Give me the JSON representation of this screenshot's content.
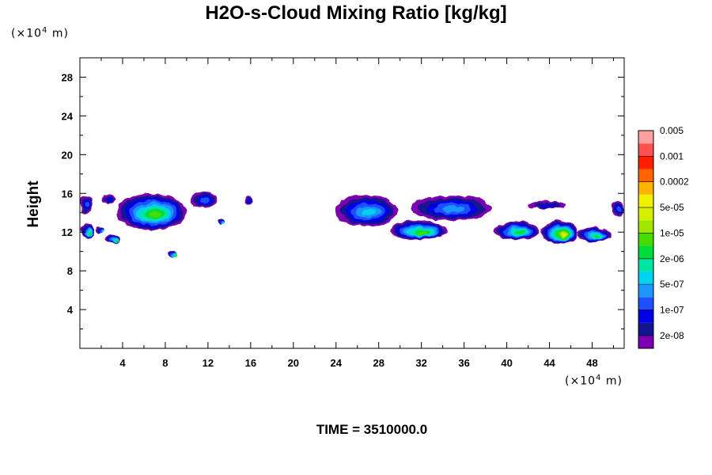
{
  "title": "H2O-s-Cloud Mixing Ratio [kg/kg]",
  "y_unit": {
    "prefix": "(×10",
    "exp": "4",
    "suffix": " m)"
  },
  "x_unit": {
    "prefix": "(×10",
    "exp": "4",
    "suffix": " m)"
  },
  "time_label": "TIME = 3510000.0",
  "chart_data": {
    "type": "heatmap",
    "title": "H2O-s-Cloud Mixing Ratio [kg/kg]",
    "xlabel": "",
    "ylabel": "Height",
    "x_unit": "(×10^4 m)",
    "y_unit": "(×10^4 m)",
    "xlim": [
      0,
      51
    ],
    "ylim": [
      0,
      30
    ],
    "xticks": [
      4,
      8,
      12,
      16,
      20,
      24,
      28,
      32,
      36,
      40,
      44,
      48
    ],
    "yticks": [
      4,
      8,
      12,
      16,
      20,
      24,
      28
    ],
    "colorbar": {
      "levels": [
        "2e-08",
        "1e-07",
        "5e-07",
        "2e-06",
        "1e-05",
        "5e-05",
        "0.0002",
        "0.001",
        "0.005"
      ],
      "colors": [
        "#7a00b0",
        "#12138f",
        "#0000e6",
        "#1e50ff",
        "#1e96ff",
        "#00d2f0",
        "#00e6a0",
        "#00dc3c",
        "#46dc00",
        "#a0e600",
        "#d2f000",
        "#f0f000",
        "#ffb400",
        "#ff6400",
        "#ff1e00",
        "#ff5050",
        "#ffa0a0"
      ]
    },
    "regions": [
      {
        "x": [
          0.0,
          1.2
        ],
        "y": [
          14.0,
          15.8
        ],
        "peak": 4
      },
      {
        "x": [
          2.0,
          3.4
        ],
        "y": [
          15.0,
          15.9
        ],
        "peak": 3
      },
      {
        "x": [
          3.4,
          10.0
        ],
        "y": [
          12.2,
          16.0
        ],
        "peak": 9
      },
      {
        "x": [
          10.3,
          12.9
        ],
        "y": [
          14.5,
          16.2
        ],
        "peak": 4
      },
      {
        "x": [
          15.4,
          16.2
        ],
        "y": [
          14.8,
          15.8
        ],
        "peak": 3
      },
      {
        "x": [
          23.9,
          29.8
        ],
        "y": [
          12.6,
          15.8
        ],
        "peak": 6
      },
      {
        "x": [
          31.0,
          38.6
        ],
        "y": [
          13.2,
          15.8
        ],
        "peak": 5
      },
      {
        "x": [
          42.0,
          45.6
        ],
        "y": [
          14.4,
          15.2
        ],
        "peak": 3
      },
      {
        "x": [
          49.8,
          51.0
        ],
        "y": [
          13.6,
          15.2
        ],
        "peak": 4
      },
      {
        "x": [
          29.0,
          34.4
        ],
        "y": [
          11.2,
          13.2
        ],
        "peak": 9
      },
      {
        "x": [
          38.8,
          43.0
        ],
        "y": [
          11.2,
          13.1
        ],
        "peak": 8
      },
      {
        "x": [
          43.2,
          46.6
        ],
        "y": [
          10.8,
          13.2
        ],
        "peak": 11
      },
      {
        "x": [
          46.6,
          49.8
        ],
        "y": [
          11.0,
          12.5
        ],
        "peak": 8
      },
      {
        "x": [
          0.0,
          1.4
        ],
        "y": [
          11.3,
          12.8
        ],
        "peak": 8
      },
      {
        "x": [
          2.4,
          3.8
        ],
        "y": [
          10.8,
          11.8
        ],
        "peak": 8
      },
      {
        "x": [
          8.3,
          9.1
        ],
        "y": [
          9.5,
          10.1
        ],
        "peak": 9
      },
      {
        "x": [
          12.9,
          13.5
        ],
        "y": [
          12.8,
          13.4
        ],
        "peak": 6
      },
      {
        "x": [
          1.5,
          2.2
        ],
        "y": [
          12.0,
          12.6
        ],
        "peak": 6
      }
    ]
  }
}
